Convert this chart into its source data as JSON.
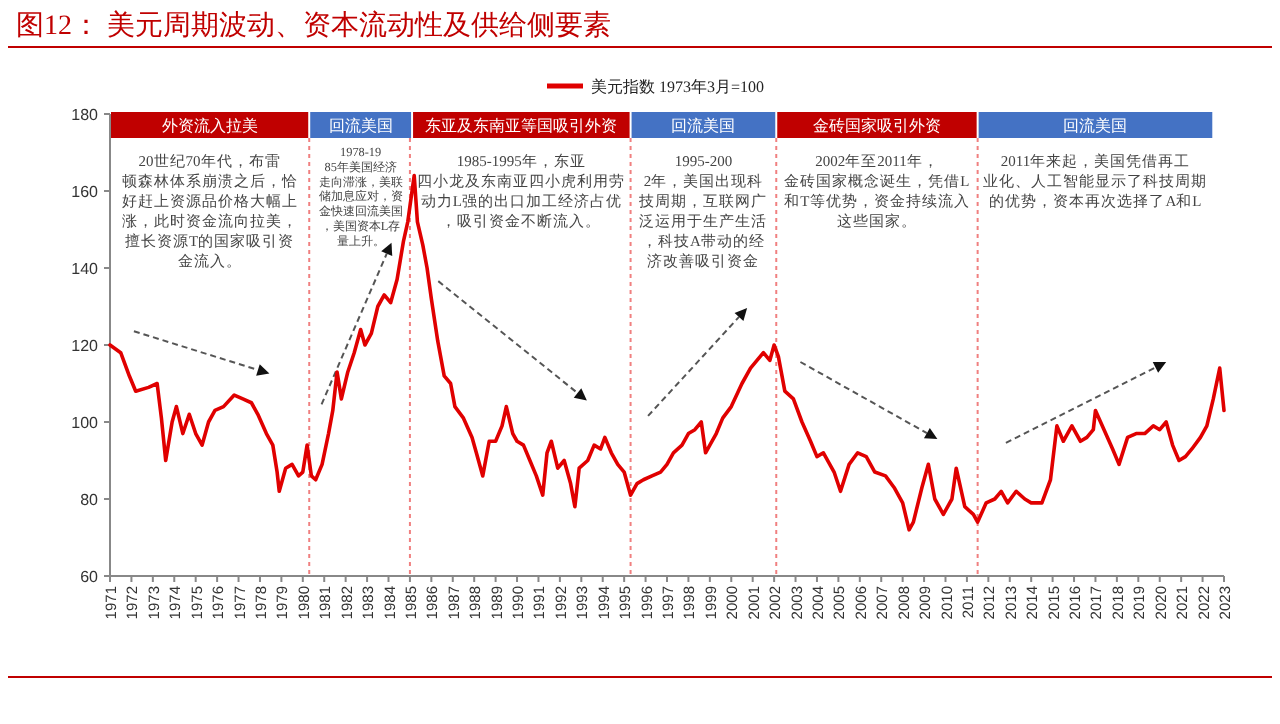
{
  "chart_data": {
    "type": "line",
    "title": "图12：  美元周期波动、资本流动性及供给侧要素",
    "x": [
      1971.0,
      1971.5,
      1971.9,
      1972.2,
      1972.8,
      1973.2,
      1973.4,
      1973.6,
      1973.9,
      1974.1,
      1974.4,
      1974.7,
      1975.0,
      1975.3,
      1975.6,
      1975.9,
      1976.3,
      1976.8,
      1977.2,
      1977.6,
      1977.9,
      1978.3,
      1978.6,
      1978.8,
      1978.9,
      1979.2,
      1979.5,
      1979.8,
      1980.0,
      1980.2,
      1980.4,
      1980.6,
      1980.9,
      1981.2,
      1981.4,
      1981.6,
      1981.8,
      1982.1,
      1982.4,
      1982.7,
      1982.9,
      1983.2,
      1983.5,
      1983.8,
      1984.1,
      1984.4,
      1984.7,
      1984.9,
      1985.2,
      1985.35,
      1985.6,
      1985.8,
      1986.0,
      1986.3,
      1986.6,
      1986.9,
      1987.1,
      1987.5,
      1987.9,
      1988.1,
      1988.4,
      1988.7,
      1989.0,
      1989.3,
      1989.5,
      1989.8,
      1990.0,
      1990.3,
      1990.6,
      1990.9,
      1991.2,
      1991.4,
      1991.6,
      1991.9,
      1992.2,
      1992.5,
      1992.7,
      1992.9,
      1993.3,
      1993.6,
      1993.9,
      1994.1,
      1994.4,
      1994.7,
      1995.0,
      1995.3,
      1995.6,
      1995.9,
      1996.3,
      1996.7,
      1997.0,
      1997.3,
      1997.7,
      1998.0,
      1998.3,
      1998.6,
      1998.8,
      1999.0,
      1999.3,
      1999.6,
      2000.0,
      2000.5,
      2000.9,
      2001.2,
      2001.5,
      2001.8,
      2002.0,
      2002.2,
      2002.5,
      2002.9,
      2003.3,
      2003.7,
      2004.0,
      2004.3,
      2004.8,
      2005.1,
      2005.5,
      2005.9,
      2006.3,
      2006.7,
      2007.2,
      2007.6,
      2008.0,
      2008.3,
      2008.5,
      2008.9,
      2009.2,
      2009.5,
      2009.9,
      2010.3,
      2010.5,
      2010.9,
      2011.3,
      2011.5,
      2011.9,
      2012.3,
      2012.6,
      2012.9,
      2013.3,
      2013.7,
      2014.0,
      2014.5,
      2014.9,
      2015.2,
      2015.5,
      2015.9,
      2016.3,
      2016.6,
      2016.9,
      2017.0,
      2017.4,
      2017.8,
      2018.1,
      2018.5,
      2018.9,
      2019.3,
      2019.7,
      2020.0,
      2020.3,
      2020.6,
      2020.9,
      2021.2,
      2021.5,
      2021.9,
      2022.2,
      2022.5,
      2022.8,
      2023.0
    ],
    "series": [
      {
        "name": "美元指数 1973年3月=100",
        "color": "#e00000",
        "values": [
          120,
          118,
          112,
          108,
          109,
          110,
          101,
          90,
          100,
          104,
          97,
          102,
          97,
          94,
          100,
          103,
          104,
          107,
          106,
          105,
          102,
          97,
          94,
          87,
          82,
          88,
          89,
          86,
          87,
          94,
          86,
          85,
          89,
          97,
          103,
          113,
          106,
          113,
          118,
          124,
          120,
          123,
          130,
          133,
          131,
          137,
          147,
          152,
          164,
          152,
          146,
          140,
          132,
          121,
          112,
          110,
          104,
          101,
          96,
          92,
          86,
          95,
          95,
          99,
          104,
          97,
          95,
          94,
          90,
          86,
          81,
          92,
          95,
          88,
          90,
          84,
          78,
          88,
          90,
          94,
          93,
          96,
          92,
          89,
          87,
          81,
          84,
          85,
          86,
          87,
          89,
          92,
          94,
          97,
          98,
          100,
          92,
          94,
          97,
          101,
          104,
          110,
          114,
          116,
          118,
          116,
          120,
          117,
          108,
          106,
          100,
          95,
          91,
          92,
          87,
          82,
          89,
          92,
          91,
          87,
          86,
          83,
          79,
          72,
          74,
          83,
          89,
          80,
          76,
          80,
          88,
          78,
          76,
          74,
          79,
          80,
          82,
          79,
          82,
          80,
          79,
          79,
          85,
          99,
          95,
          99,
          95,
          96,
          98,
          103,
          98,
          93,
          89,
          96,
          97,
          97,
          99,
          98,
          100,
          94,
          90,
          91,
          93,
          96,
          99,
          106,
          114,
          103
        ]
      }
    ],
    "xlim": [
      1971,
      2023
    ],
    "xticks": [
      1971,
      1972,
      1973,
      1974,
      1975,
      1976,
      1977,
      1978,
      1979,
      1980,
      1981,
      1982,
      1983,
      1984,
      1985,
      1986,
      1987,
      1988,
      1989,
      1990,
      1991,
      1992,
      1993,
      1994,
      1995,
      1996,
      1997,
      1998,
      1999,
      2000,
      2001,
      2002,
      2003,
      2004,
      2005,
      2006,
      2007,
      2008,
      2009,
      2010,
      2011,
      2012,
      2013,
      2014,
      2015,
      2016,
      2017,
      2018,
      2019,
      2020,
      2021,
      2022,
      2023
    ],
    "ylim": [
      60,
      180
    ],
    "yticks": [
      60,
      80,
      100,
      120,
      140,
      160,
      180
    ],
    "legend": "top",
    "bands": [
      {
        "axis": "x",
        "from": 1971,
        "to": 1980.3,
        "label": "外资流入拉美",
        "color": "#c00000"
      },
      {
        "axis": "x",
        "from": 1980.3,
        "to": 1985.1,
        "label": "回流美国",
        "color": "#4472c4"
      },
      {
        "axis": "x",
        "from": 1985.1,
        "to": 1995.3,
        "label": "东亚及东南亚等国吸引外资",
        "color": "#c00000"
      },
      {
        "axis": "x",
        "from": 1995.3,
        "to": 2002.1,
        "label": "回流美国",
        "color": "#4472c4"
      },
      {
        "axis": "x",
        "from": 2002.1,
        "to": 2011.5,
        "label": "金砖国家吸引外资",
        "color": "#c00000"
      },
      {
        "axis": "x",
        "from": 2011.5,
        "to": 2022.5,
        "label": "回流美国",
        "color": "#4472c4"
      }
    ],
    "ref_lines": [
      {
        "axis": "x",
        "value": 1980.3,
        "color": "#f08080",
        "line_style": "dotted"
      },
      {
        "axis": "x",
        "value": 1985.0,
        "color": "#f08080",
        "line_style": "dotted"
      },
      {
        "axis": "x",
        "value": 1995.3,
        "color": "#f08080",
        "line_style": "dotted"
      },
      {
        "axis": "x",
        "value": 2002.1,
        "color": "#f08080",
        "line_style": "dotted"
      },
      {
        "axis": "x",
        "value": 2011.5,
        "color": "#f08080",
        "line_style": "dotted"
      }
    ],
    "annotations": [
      "20世纪70年代，布雷顿森林体系崩溃之后，恰好赶上资源品价格大幅上涨，此时资金流向拉美，擅长资源T的国家吸引资金流入。",
      "1978-1985年美国经济走向滞涨，美联储加息应对，资金快速回流美国，美国资本L存量上升。",
      "1985-1995年，东亚四小龙及东南亚四小虎利用劳动力L强的出口加工经济占优，吸引资金不断流入。",
      "1995-2002年，美国出现科技周期，互联网广泛运用于生产生活，科技A带动的经济改善吸引资金",
      "2002年至2011年，金砖国家概念诞生，凭借L和T等优势，资金持续流入这些国家。",
      "2011年来起，美国凭借再工业化、人工智能显示了科技周期的优势，资本再次选择了A和L"
    ]
  }
}
